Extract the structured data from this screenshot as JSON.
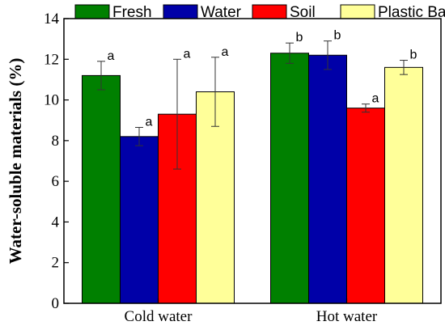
{
  "chart_data": {
    "type": "bar",
    "categories": [
      "Cold water",
      "Hot water"
    ],
    "series": [
      {
        "name": "Fresh",
        "color": "#008000",
        "values": [
          11.2,
          12.3
        ],
        "errors": [
          0.7,
          0.5
        ],
        "labels": [
          "a",
          "b"
        ]
      },
      {
        "name": "Water",
        "color": "#0000A8",
        "values": [
          8.2,
          12.2
        ],
        "errors": [
          0.45,
          0.7
        ],
        "labels": [
          "a",
          "b"
        ]
      },
      {
        "name": "Soil",
        "color": "#FF0000",
        "values": [
          9.3,
          9.6
        ],
        "errors": [
          2.7,
          0.2
        ],
        "labels": [
          "a",
          "a"
        ]
      },
      {
        "name": "Plastic Bag",
        "color": "#FFFF99",
        "values": [
          10.4,
          11.6
        ],
        "errors": [
          1.7,
          0.35
        ],
        "labels": [
          "a",
          "b"
        ]
      }
    ],
    "ylabel": "Water-soluble materials (%)",
    "xlabel": "",
    "ylim": [
      0,
      14
    ],
    "yticks": [
      "0",
      "2",
      "4",
      "6",
      "8",
      "10",
      "12",
      "14"
    ],
    "legend_position": "top",
    "grid": false
  }
}
